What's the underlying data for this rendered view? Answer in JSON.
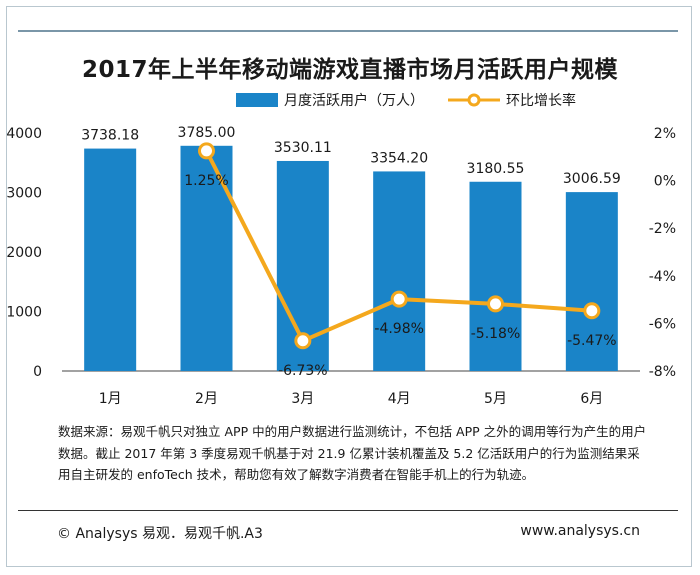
{
  "chart_data": {
    "type": "bar",
    "title": "2017年上半年移动端游戏直播市场月活跃用户规模",
    "categories": [
      "1月",
      "2月",
      "3月",
      "4月",
      "5月",
      "6月"
    ],
    "series": [
      {
        "name": "月度活跃用户（万人）",
        "type": "bar",
        "axis": "left",
        "values": [
          3738.18,
          3785.0,
          3530.11,
          3354.2,
          3180.55,
          3006.59
        ],
        "labels": [
          "3738.18",
          "3785.00",
          "3530.11",
          "3354.20",
          "3180.55",
          "3006.59"
        ],
        "color": "#1a84c8"
      },
      {
        "name": "环比增长率",
        "type": "line",
        "axis": "right",
        "values": [
          null,
          1.25,
          -6.73,
          -4.98,
          -5.18,
          -5.47
        ],
        "labels": [
          "",
          "1.25%",
          "-6.73%",
          "-4.98%",
          "-5.18%",
          "-5.47%"
        ],
        "color": "#f4a81d"
      }
    ],
    "y_left": {
      "ylim": [
        0,
        4000
      ],
      "ticks": [
        "0",
        "1000",
        "2000",
        "3000",
        "4000"
      ]
    },
    "y_right": {
      "ylim": [
        -8,
        2
      ],
      "ticks": [
        "-8%",
        "-6%",
        "-4%",
        "-2%",
        "0%",
        "2%"
      ]
    },
    "legend_position": "top-center",
    "grid": false
  },
  "note": {
    "text": "数据来源：易观千帆只对独立 APP 中的用户数据进行监测统计，不包括 APP 之外的调用等行为产生的用户数据。截止 2017 年第 3 季度易观千帆基于对 21.9 亿累计装机覆盖及 5.2 亿活跃用户的行为监测结果采用自主研发的 enfoTech 技术，帮助您有效了解数字消费者在智能手机上的行为轨迹。"
  },
  "footer": {
    "left": "© Analysys 易观．易观千帆.A3",
    "right": "www.analysys.cn"
  }
}
